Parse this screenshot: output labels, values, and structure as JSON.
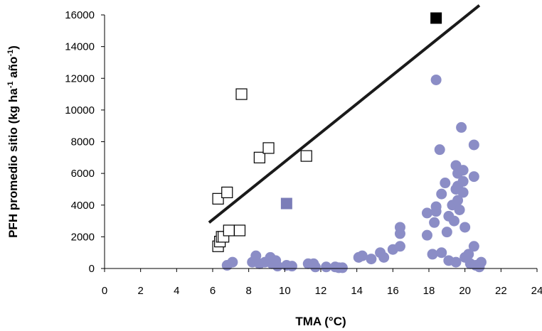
{
  "chart_data": {
    "type": "scatter",
    "xlabel": "TMA (°C)",
    "ylabel": "PFH promedio sitio (kg ha-1 año-1)",
    "ylabel_parts": [
      "PFH promedio sitio (kg ha",
      "-1",
      " año",
      "-1",
      ")"
    ],
    "xlim": [
      0,
      24
    ],
    "ylim": [
      0,
      16000
    ],
    "xticks": [
      0,
      2,
      4,
      6,
      8,
      10,
      12,
      14,
      16,
      18,
      20,
      22,
      24
    ],
    "yticks": [
      0,
      2000,
      4000,
      6000,
      8000,
      10000,
      12000,
      14000,
      16000
    ],
    "grid": false,
    "series": [
      {
        "marker": "open-square",
        "color": "#000000",
        "points": [
          [
            6.3,
            1400
          ],
          [
            6.4,
            1700
          ],
          [
            6.5,
            2000
          ],
          [
            6.6,
            2000
          ],
          [
            6.3,
            4400
          ],
          [
            6.8,
            4800
          ],
          [
            6.9,
            2400
          ],
          [
            7.5,
            2400
          ],
          [
            7.6,
            11000
          ],
          [
            8.6,
            7000
          ],
          [
            9.1,
            7600
          ],
          [
            11.2,
            7100
          ]
        ]
      },
      {
        "marker": "filled-square",
        "color": "#000000",
        "points": [
          [
            18.4,
            15800
          ]
        ]
      },
      {
        "marker": "filled-square",
        "color": "#7b7db8",
        "points": [
          [
            10.1,
            4100
          ]
        ]
      },
      {
        "marker": "filled-circle",
        "color": "#8b8dc6",
        "points": [
          [
            6.8,
            200
          ],
          [
            7.1,
            400
          ],
          [
            8.2,
            400
          ],
          [
            8.4,
            800
          ],
          [
            8.6,
            300
          ],
          [
            8.9,
            400
          ],
          [
            9.2,
            700
          ],
          [
            9.3,
            300
          ],
          [
            9.5,
            500
          ],
          [
            9.6,
            150
          ],
          [
            10.1,
            200
          ],
          [
            10.4,
            150
          ],
          [
            11.3,
            300
          ],
          [
            11.6,
            300
          ],
          [
            11.7,
            100
          ],
          [
            12.3,
            100
          ],
          [
            12.8,
            100
          ],
          [
            13.0,
            50
          ],
          [
            13.2,
            50
          ],
          [
            14.1,
            700
          ],
          [
            14.3,
            800
          ],
          [
            14.8,
            600
          ],
          [
            15.3,
            1000
          ],
          [
            15.5,
            700
          ],
          [
            16.0,
            1200
          ],
          [
            16.4,
            1400
          ],
          [
            16.4,
            2200
          ],
          [
            16.4,
            2600
          ],
          [
            17.9,
            2100
          ],
          [
            17.9,
            3500
          ],
          [
            18.2,
            900
          ],
          [
            18.3,
            2900
          ],
          [
            18.4,
            3600
          ],
          [
            18.4,
            3900
          ],
          [
            18.4,
            11900
          ],
          [
            18.6,
            7500
          ],
          [
            18.7,
            4700
          ],
          [
            18.7,
            1000
          ],
          [
            18.9,
            5400
          ],
          [
            19.0,
            2300
          ],
          [
            19.1,
            3300
          ],
          [
            19.1,
            500
          ],
          [
            19.3,
            4000
          ],
          [
            19.4,
            3000
          ],
          [
            19.5,
            400
          ],
          [
            19.5,
            5000
          ],
          [
            19.5,
            6500
          ],
          [
            19.6,
            5200
          ],
          [
            19.6,
            4300
          ],
          [
            19.6,
            6000
          ],
          [
            19.7,
            3700
          ],
          [
            19.8,
            8900
          ],
          [
            19.9,
            6200
          ],
          [
            19.9,
            4800
          ],
          [
            19.9,
            5500
          ],
          [
            20.0,
            2600
          ],
          [
            20.0,
            700
          ],
          [
            20.2,
            900
          ],
          [
            20.3,
            300
          ],
          [
            20.5,
            1400
          ],
          [
            20.5,
            5800
          ],
          [
            20.5,
            7800
          ],
          [
            20.6,
            200
          ],
          [
            20.8,
            100
          ],
          [
            20.9,
            400
          ]
        ]
      }
    ],
    "trendline": {
      "color": "#1a1a1a",
      "from": [
        5.8,
        2900
      ],
      "to": [
        20.8,
        16600
      ]
    }
  }
}
